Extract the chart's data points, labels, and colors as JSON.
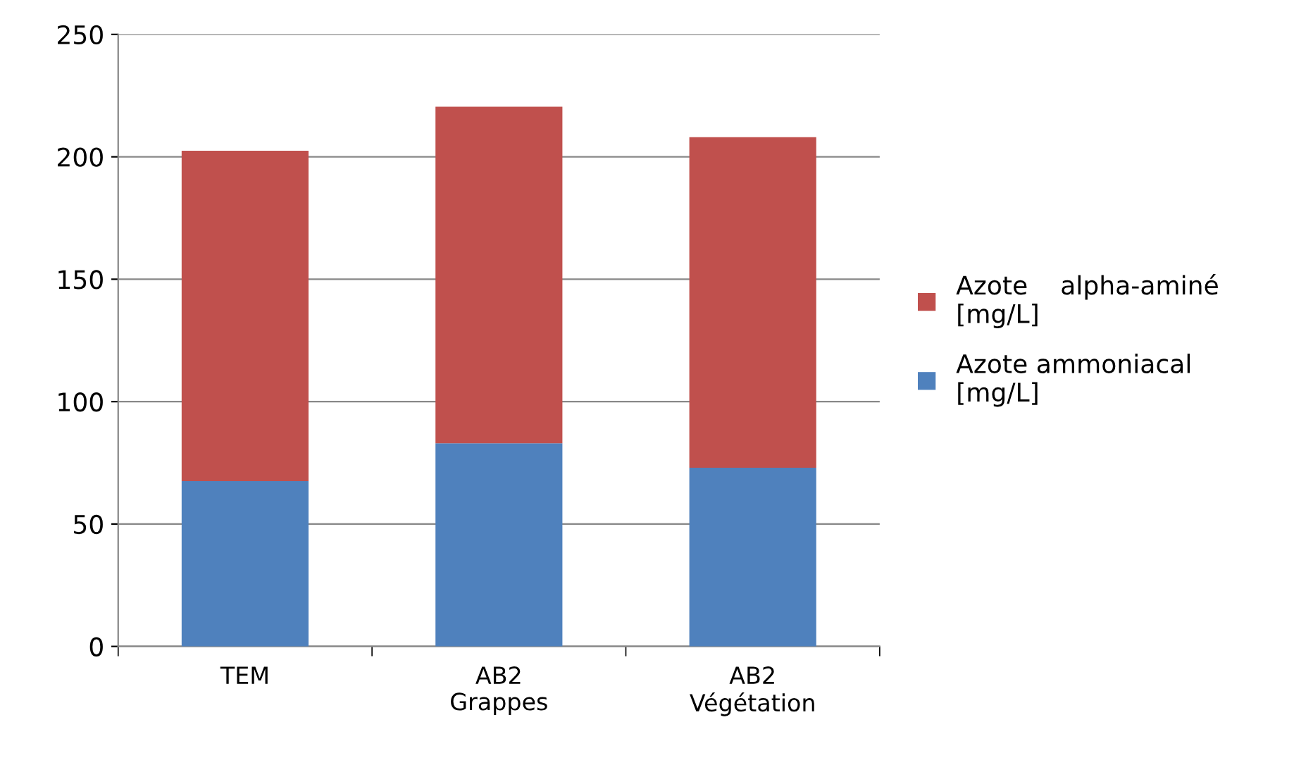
{
  "chart_data": {
    "type": "bar",
    "stacked": true,
    "categories": [
      "TEM",
      "AB2\nGrappes",
      "AB2\nVégétation"
    ],
    "series": [
      {
        "name": "Azote ammoniacal\n[mg/L]",
        "color": "#4f81bd",
        "values": [
          67.5,
          83,
          73
        ]
      },
      {
        "name": "Azote    alpha-aminé\n[mg/L]",
        "color": "#c0504d",
        "values": [
          135,
          137.5,
          135
        ]
      }
    ],
    "ylim": [
      0,
      250
    ],
    "yticks": [
      0,
      50,
      100,
      150,
      200,
      250
    ],
    "grid": "y",
    "legend": "right"
  }
}
